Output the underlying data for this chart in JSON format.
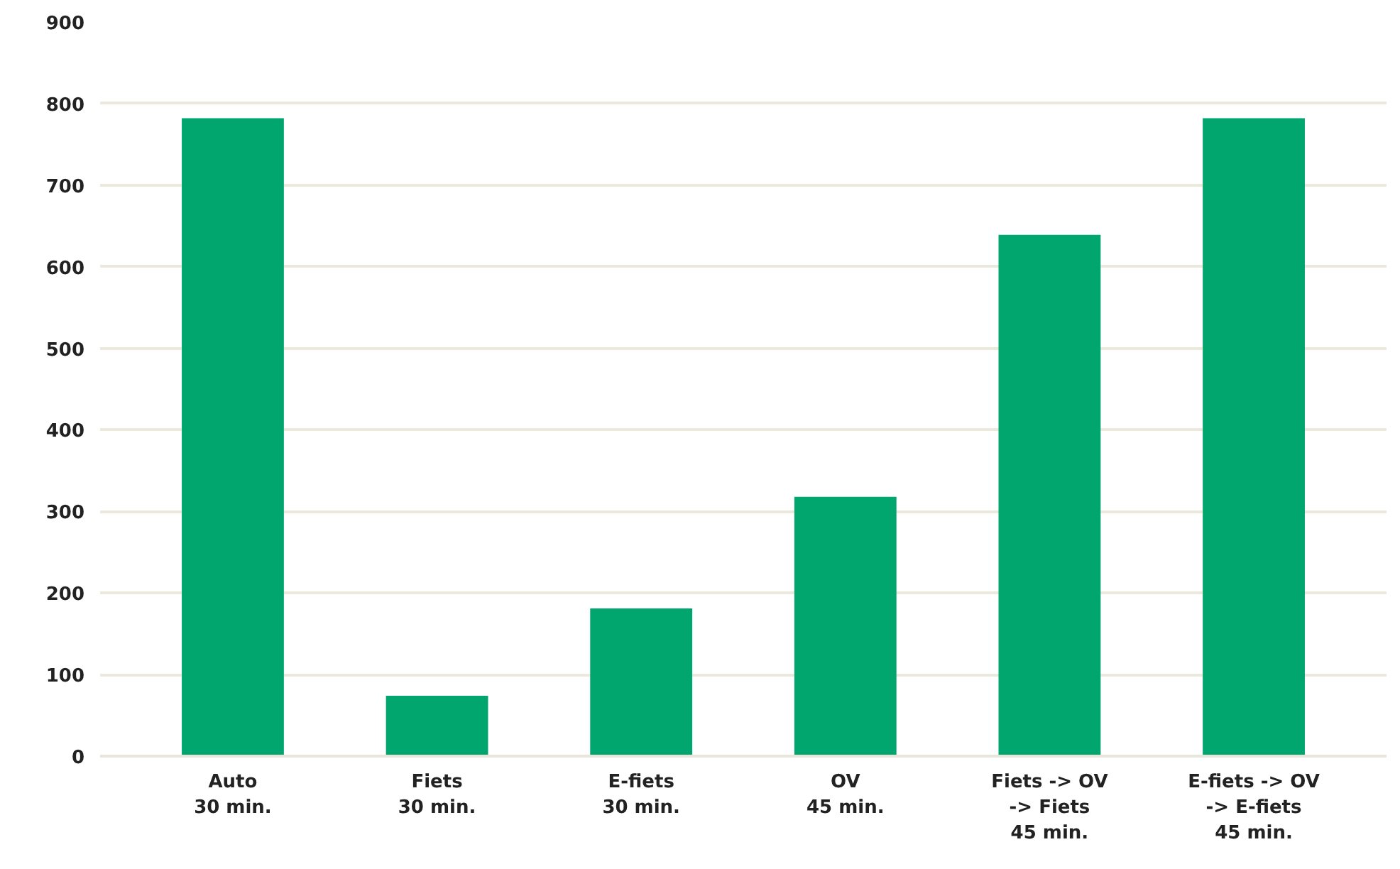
{
  "chart_data": {
    "type": "bar",
    "categories": [
      "Auto\n30 min.",
      "Fiets\n30 min.",
      "E-fiets\n30 min.",
      "OV\n45 min.",
      "Fiets -> OV\n-> Fiets\n45 min.",
      "E-fiets -> OV\n-> E-fiets\n45 min."
    ],
    "values": [
      782,
      74,
      181,
      318,
      639,
      782
    ],
    "color": "#00a66e",
    "ylim": [
      0,
      900
    ],
    "yticks": [
      0,
      100,
      200,
      300,
      400,
      500,
      600,
      700,
      800,
      900
    ],
    "grid": "y"
  }
}
